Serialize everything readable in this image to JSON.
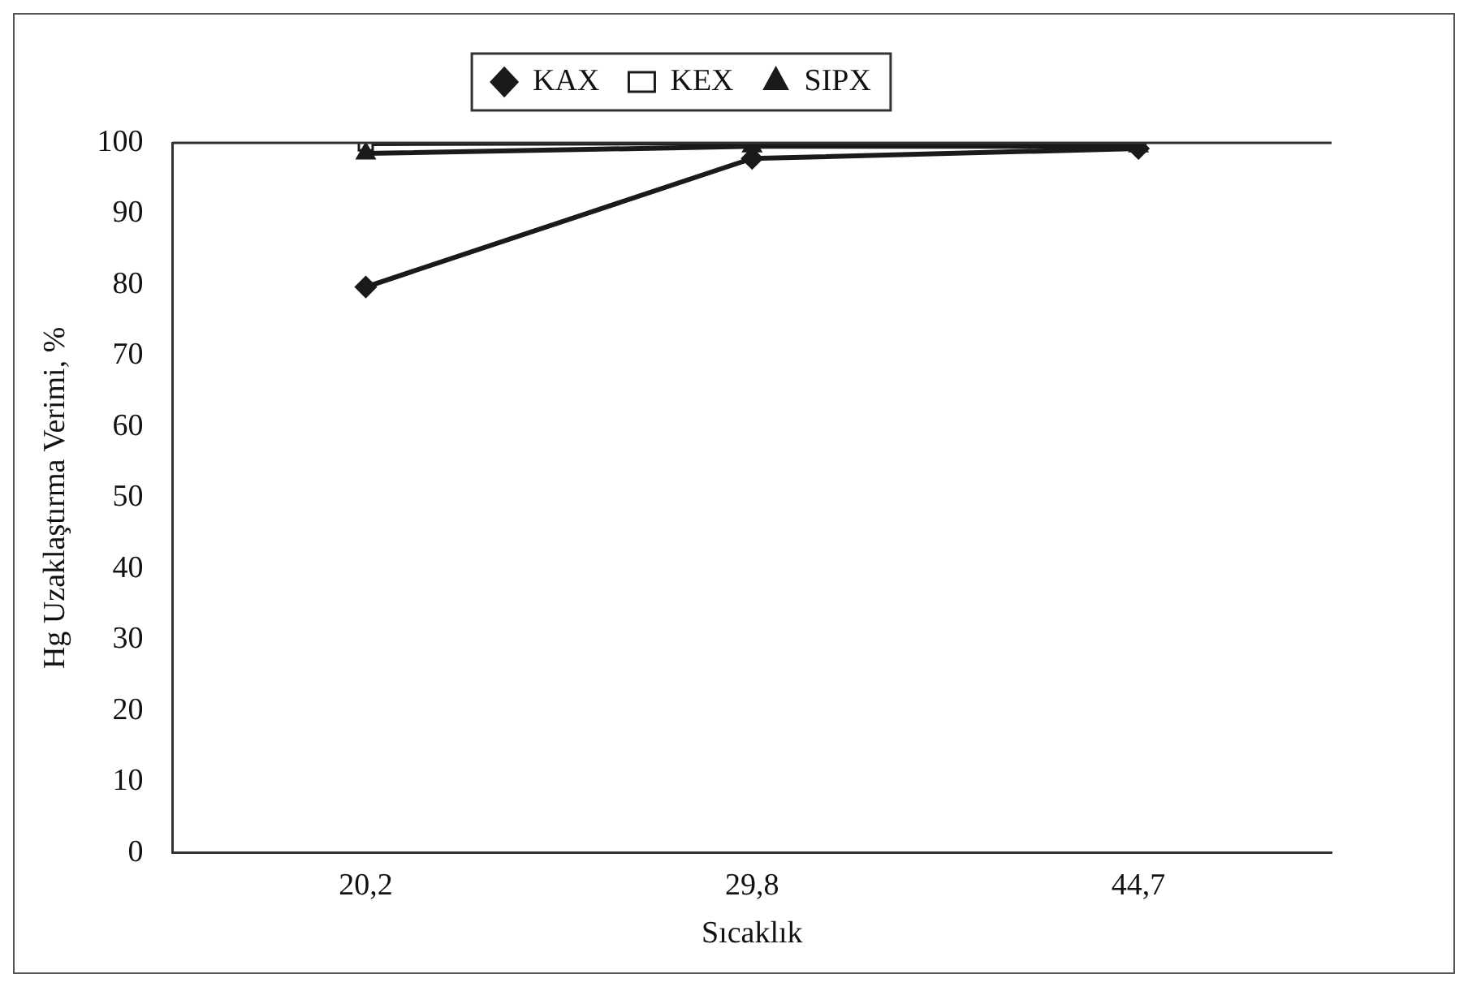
{
  "chart_data": {
    "type": "line",
    "xlabel": "Sıcaklık",
    "ylabel": "Hg Uzaklaştırma Verimi, %",
    "categories": [
      "20,2",
      "29,8",
      "44,7"
    ],
    "series": [
      {
        "name": "KAX",
        "color": "#1a1a1a",
        "marker": "diamond",
        "values": [
          79.7,
          97.8,
          99.2
        ]
      },
      {
        "name": "KEX",
        "color": "#1a1a1a",
        "marker": "square",
        "values": [
          99.9,
          100,
          100
        ]
      },
      {
        "name": "SIPX",
        "color": "#1a1a1a",
        "marker": "triangle",
        "values": [
          98.5,
          99.5,
          99.5
        ]
      }
    ],
    "ylim": [
      0,
      100
    ],
    "yticks": [
      0,
      10,
      20,
      30,
      40,
      50,
      60,
      70,
      80,
      90,
      100
    ],
    "grid": false,
    "legend": "top",
    "line_style": "solid"
  }
}
